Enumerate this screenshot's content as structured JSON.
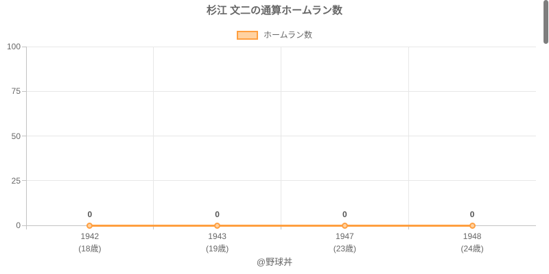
{
  "colors": {
    "accent": "#ff9f40",
    "accent_light": "#ffd2a1",
    "grid": "#e7e7e7",
    "axis": "#c2c2c2",
    "text": "#666666",
    "data_label": "#555555"
  },
  "chart_data": {
    "type": "line",
    "title": "杉江 文二の通算ホームラン数",
    "legend_entries": [
      "ホームラン数"
    ],
    "legend_position": "top",
    "categories": [
      "1942",
      "1943",
      "1947",
      "1948"
    ],
    "category_sublabels": [
      "(18歳)",
      "(19歳)",
      "(23歳)",
      "(24歳)"
    ],
    "series": [
      {
        "name": "ホームラン数",
        "values": [
          0,
          0,
          0,
          0
        ]
      }
    ],
    "point_labels": [
      "0",
      "0",
      "0",
      "0"
    ],
    "xlabel": "",
    "ylabel": "",
    "ylim": [
      0,
      100
    ],
    "yticks": [
      0,
      25,
      50,
      75,
      100
    ],
    "grid": true,
    "annotation": "@野球丼"
  }
}
